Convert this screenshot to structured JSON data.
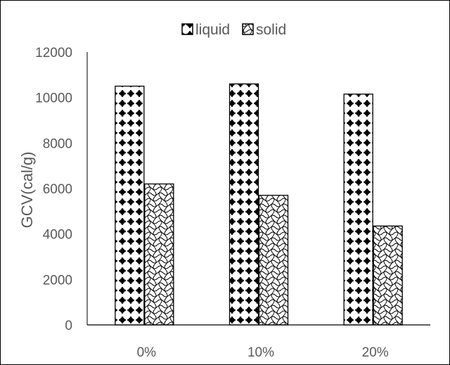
{
  "chart_data": {
    "type": "bar",
    "categories": [
      "0%",
      "10%",
      "20%"
    ],
    "series": [
      {
        "name": "liquid",
        "values": [
          10500,
          10600,
          10150
        ],
        "pattern": "dots"
      },
      {
        "name": "solid",
        "values": [
          6200,
          5700,
          4350
        ],
        "pattern": "waves"
      }
    ],
    "title": "",
    "xlabel": "",
    "ylabel": "GCV(cal/g)",
    "ylim": [
      0,
      12000
    ],
    "yticks": [
      0,
      2000,
      4000,
      6000,
      8000,
      10000,
      12000
    ],
    "grid": false,
    "legend": "top-center",
    "colors": {
      "bar_fill": "#ffffff",
      "pattern": "#000000",
      "axis": "#000000",
      "text": "#595959",
      "border": "#000000"
    }
  }
}
